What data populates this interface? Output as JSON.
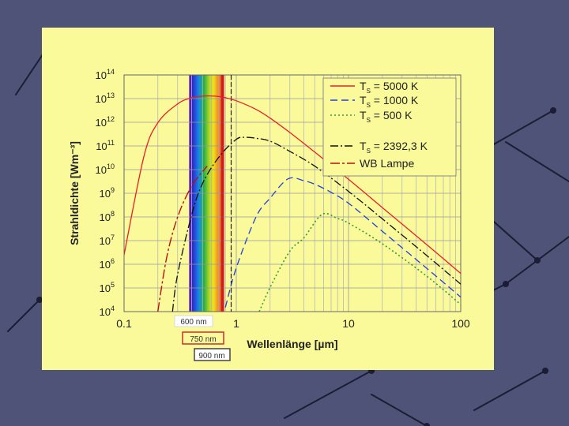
{
  "slide": {
    "background_color": "#4f5378",
    "panel_color": "#fafa9a",
    "network_color": "#1a1d33"
  },
  "chart_data": {
    "type": "line",
    "xscale": "log",
    "yscale": "log",
    "xlim": [
      0.1,
      100
    ],
    "ylim": [
      10000,
      100000000000000
    ],
    "grid": true,
    "legend_position": "top-right",
    "xlabel": "Wellenlänge [µm]",
    "ylabel": "Strahldichte [Wm⁻³]",
    "x_ticks": [
      {
        "value": 0.1,
        "label": "0.1"
      },
      {
        "value": 1,
        "label": "1"
      },
      {
        "value": 10,
        "label": "10"
      },
      {
        "value": 100,
        "label": "100"
      }
    ],
    "y_ticks": [
      {
        "value": 10000,
        "base": "10",
        "exp": "4"
      },
      {
        "value": 100000,
        "base": "10",
        "exp": "5"
      },
      {
        "value": 1000000,
        "base": "10",
        "exp": "6"
      },
      {
        "value": 10000000,
        "base": "10",
        "exp": "7"
      },
      {
        "value": 100000000,
        "base": "10",
        "exp": "8"
      },
      {
        "value": 1000000000,
        "base": "10",
        "exp": "9"
      },
      {
        "value": 10000000000,
        "base": "10",
        "exp": "10"
      },
      {
        "value": 100000000000,
        "base": "10",
        "exp": "11"
      },
      {
        "value": 1000000000000,
        "base": "10",
        "exp": "12"
      },
      {
        "value": 10000000000000,
        "base": "10",
        "exp": "13"
      },
      {
        "value": 100000000000000,
        "base": "10",
        "exp": "14"
      }
    ],
    "series": [
      {
        "name": "TS = 5000 K",
        "label_main": "T",
        "label_sub": "S",
        "label_rest": " = 5000 K",
        "temperature_k": 5000,
        "color": "#e8202a",
        "dash": "",
        "width": 1.3,
        "x": [
          0.1,
          0.15,
          0.2,
          0.3,
          0.4,
          0.5,
          0.58,
          0.7,
          0.8,
          1,
          1.5,
          2,
          3,
          5,
          10,
          20,
          50,
          100
        ],
        "y": [
          2500000.0,
          35000000000.0,
          950000000000.0,
          6000000000000.0,
          10900000000000.0,
          12700000000000.0,
          13000000000000.0,
          12200000000000.0,
          11000000000000.0,
          8100000000000.0,
          3500000000000.0,
          1500000000000.0,
          370000000000.0,
          55000000000.0,
          3900000000.0,
          250000000.0,
          6600000.0,
          410000.0
        ]
      },
      {
        "name": "TS = 1000 K",
        "label_main": "T",
        "label_sub": "S",
        "label_rest": " = 1000 K",
        "temperature_k": 1000,
        "color": "#2040d8",
        "dash": "9,5",
        "width": 1.3,
        "x": [
          0.8,
          1,
          1.5,
          2,
          2.9,
          4,
          5,
          7,
          10,
          20,
          50,
          100
        ],
        "y": [
          15000.0,
          710000.0,
          100000000.0,
          620000000.0,
          4100000000.0,
          3400000000.0,
          2400000000.0,
          1100000000.0,
          380000000.0,
          25000000.0,
          660000.0,
          41000.0
        ]
      },
      {
        "name": "TS = 500 K",
        "label_main": "T",
        "label_sub": "S",
        "label_rest": " = 500 K",
        "temperature_k": 500,
        "color": "#3a9a3a",
        "dash": "2,3",
        "width": 1.6,
        "x": [
          1.6,
          2,
          3,
          4,
          5.8,
          8,
          10,
          20,
          50,
          100
        ],
        "y": [
          10000.0,
          104000.0,
          3600000.0,
          13000000.0,
          128000000.0,
          86000000.0,
          55000000.0,
          7400000.0,
          310000.0,
          20000.0
        ]
      },
      {
        "name": "TS = 2392,3 K",
        "label_main": "T",
        "label_sub": "S",
        "label_rest": " = 2392,3 K",
        "temperature_k": 2392.3,
        "color": "#111111",
        "dash": "10,3,2,3",
        "width": 1.3,
        "x": [
          0.27,
          0.3,
          0.4,
          0.5,
          0.7,
          1,
          1.21,
          1.5,
          2,
          3,
          5,
          10,
          20,
          50,
          100
        ],
        "y": [
          10000.0,
          380000.0,
          120000000.0,
          2600000000.0,
          34000000000.0,
          190000000000.0,
          230000000000.0,
          210000000000.0,
          160000000000.0,
          59000000000.0,
          14000000000.0,
          1200000000.0,
          84000000.0,
          2300000.0,
          145000.0
        ]
      },
      {
        "name": "WB Lampe",
        "label_main": "WB Lampe",
        "label_sub": "",
        "label_rest": "",
        "temperature_k": null,
        "color": "#bb1010",
        "dash": "12,3,3,3",
        "width": 1.4,
        "x": [
          0.2,
          0.24,
          0.3,
          0.4,
          0.55
        ],
        "y": [
          10000.0,
          2000000.0,
          100000000.0,
          2000000000.0,
          14000000000.0
        ]
      }
    ],
    "annotations": [
      {
        "text": "600 nm",
        "x": 0.6,
        "color": "#d8d8d8"
      },
      {
        "text": "750 nm",
        "x": 0.75,
        "color": "#c83030"
      },
      {
        "text": "900 nm",
        "x": 0.9,
        "color": "#444444"
      }
    ],
    "visible_spectrum": [
      0.38,
      0.78
    ]
  }
}
